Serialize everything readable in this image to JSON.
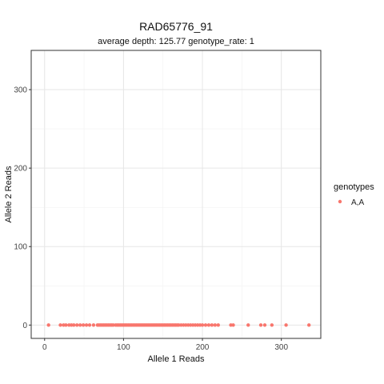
{
  "chart_data": {
    "type": "scatter",
    "title": "RAD65776_91",
    "subtitle": "average depth:  125.77  genotype_rate:  1",
    "xlabel": "Allele 1 Reads",
    "ylabel": "Allele 2 Reads",
    "xlim": [
      -17,
      350
    ],
    "ylim": [
      -17,
      350
    ],
    "xticks": [
      0,
      100,
      200,
      300
    ],
    "yticks": [
      0,
      100,
      200,
      300
    ],
    "grid": true,
    "legend": {
      "title": "genotypes",
      "placement": "right",
      "entries": [
        {
          "label": "A,A",
          "color": "#F8766D"
        }
      ]
    },
    "series": [
      {
        "name": "A,A",
        "color": "#F8766D",
        "points": [
          [
            5,
            0
          ],
          [
            20,
            0
          ],
          [
            24,
            0
          ],
          [
            27,
            0
          ],
          [
            31,
            0
          ],
          [
            34,
            0
          ],
          [
            37,
            0
          ],
          [
            41,
            0
          ],
          [
            45,
            0
          ],
          [
            49,
            0
          ],
          [
            53,
            0
          ],
          [
            57,
            0
          ],
          [
            62,
            0
          ],
          [
            67,
            0
          ],
          [
            69,
            0
          ],
          [
            71,
            0
          ],
          [
            73,
            0
          ],
          [
            75,
            0
          ],
          [
            77,
            0
          ],
          [
            79,
            0
          ],
          [
            81,
            0
          ],
          [
            83,
            0
          ],
          [
            85,
            0
          ],
          [
            87,
            0
          ],
          [
            90,
            0
          ],
          [
            92,
            0
          ],
          [
            94,
            0
          ],
          [
            96,
            0
          ],
          [
            98,
            0
          ],
          [
            100,
            0
          ],
          [
            102,
            0
          ],
          [
            104,
            0
          ],
          [
            106,
            0
          ],
          [
            108,
            0
          ],
          [
            110,
            0
          ],
          [
            112,
            0
          ],
          [
            114,
            0
          ],
          [
            116,
            0
          ],
          [
            118,
            0
          ],
          [
            120,
            0
          ],
          [
            122,
            0
          ],
          [
            124,
            0
          ],
          [
            126,
            0
          ],
          [
            128,
            0
          ],
          [
            130,
            0
          ],
          [
            132,
            0
          ],
          [
            134,
            0
          ],
          [
            136,
            0
          ],
          [
            138,
            0
          ],
          [
            140,
            0
          ],
          [
            142,
            0
          ],
          [
            144,
            0
          ],
          [
            146,
            0
          ],
          [
            148,
            0
          ],
          [
            150,
            0
          ],
          [
            152,
            0
          ],
          [
            154,
            0
          ],
          [
            156,
            0
          ],
          [
            158,
            0
          ],
          [
            160,
            0
          ],
          [
            162,
            0
          ],
          [
            164,
            0
          ],
          [
            166,
            0
          ],
          [
            168,
            0
          ],
          [
            170,
            0
          ],
          [
            173,
            0
          ],
          [
            176,
            0
          ],
          [
            179,
            0
          ],
          [
            182,
            0
          ],
          [
            185,
            0
          ],
          [
            188,
            0
          ],
          [
            191,
            0
          ],
          [
            194,
            0
          ],
          [
            197,
            0
          ],
          [
            200,
            0
          ],
          [
            204,
            0
          ],
          [
            208,
            0
          ],
          [
            212,
            0
          ],
          [
            216,
            0
          ],
          [
            220,
            0
          ],
          [
            236,
            0
          ],
          [
            239,
            0
          ],
          [
            258,
            0
          ],
          [
            274,
            0
          ],
          [
            279,
            0
          ],
          [
            288,
            0
          ],
          [
            306,
            0
          ],
          [
            335,
            0
          ]
        ]
      }
    ]
  }
}
